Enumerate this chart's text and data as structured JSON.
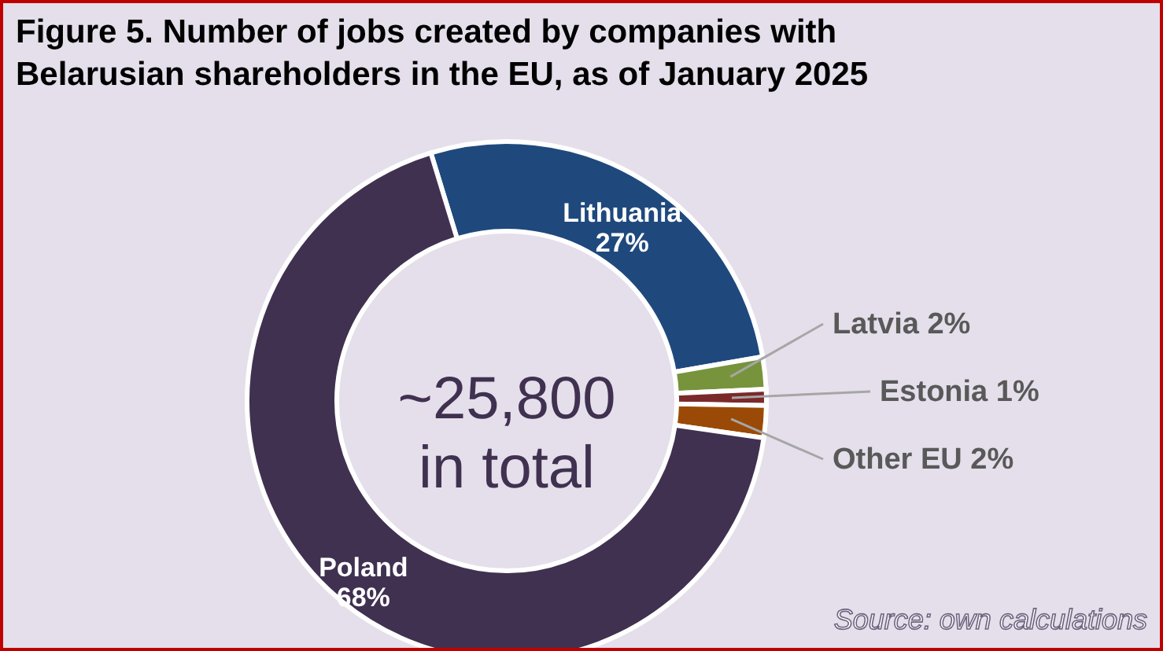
{
  "chart_data": {
    "type": "donut",
    "title": "Figure 5. Number of jobs created by companies with\nBelarusian shareholders in the EU, as of January 2025",
    "categories": [
      "Lithuania",
      "Latvia",
      "Estonia",
      "Other EU",
      "Poland"
    ],
    "values": [
      27,
      2,
      1,
      2,
      68
    ],
    "colors": [
      "#1f497d",
      "#77933c",
      "#7a2a2a",
      "#9a4a06",
      "#403151"
    ],
    "value_labels": [
      "27%",
      "2%",
      "1%",
      "2%",
      "68%"
    ],
    "annotations": [
      "~25,800\nin total",
      "Source: own calculations"
    ]
  }
}
